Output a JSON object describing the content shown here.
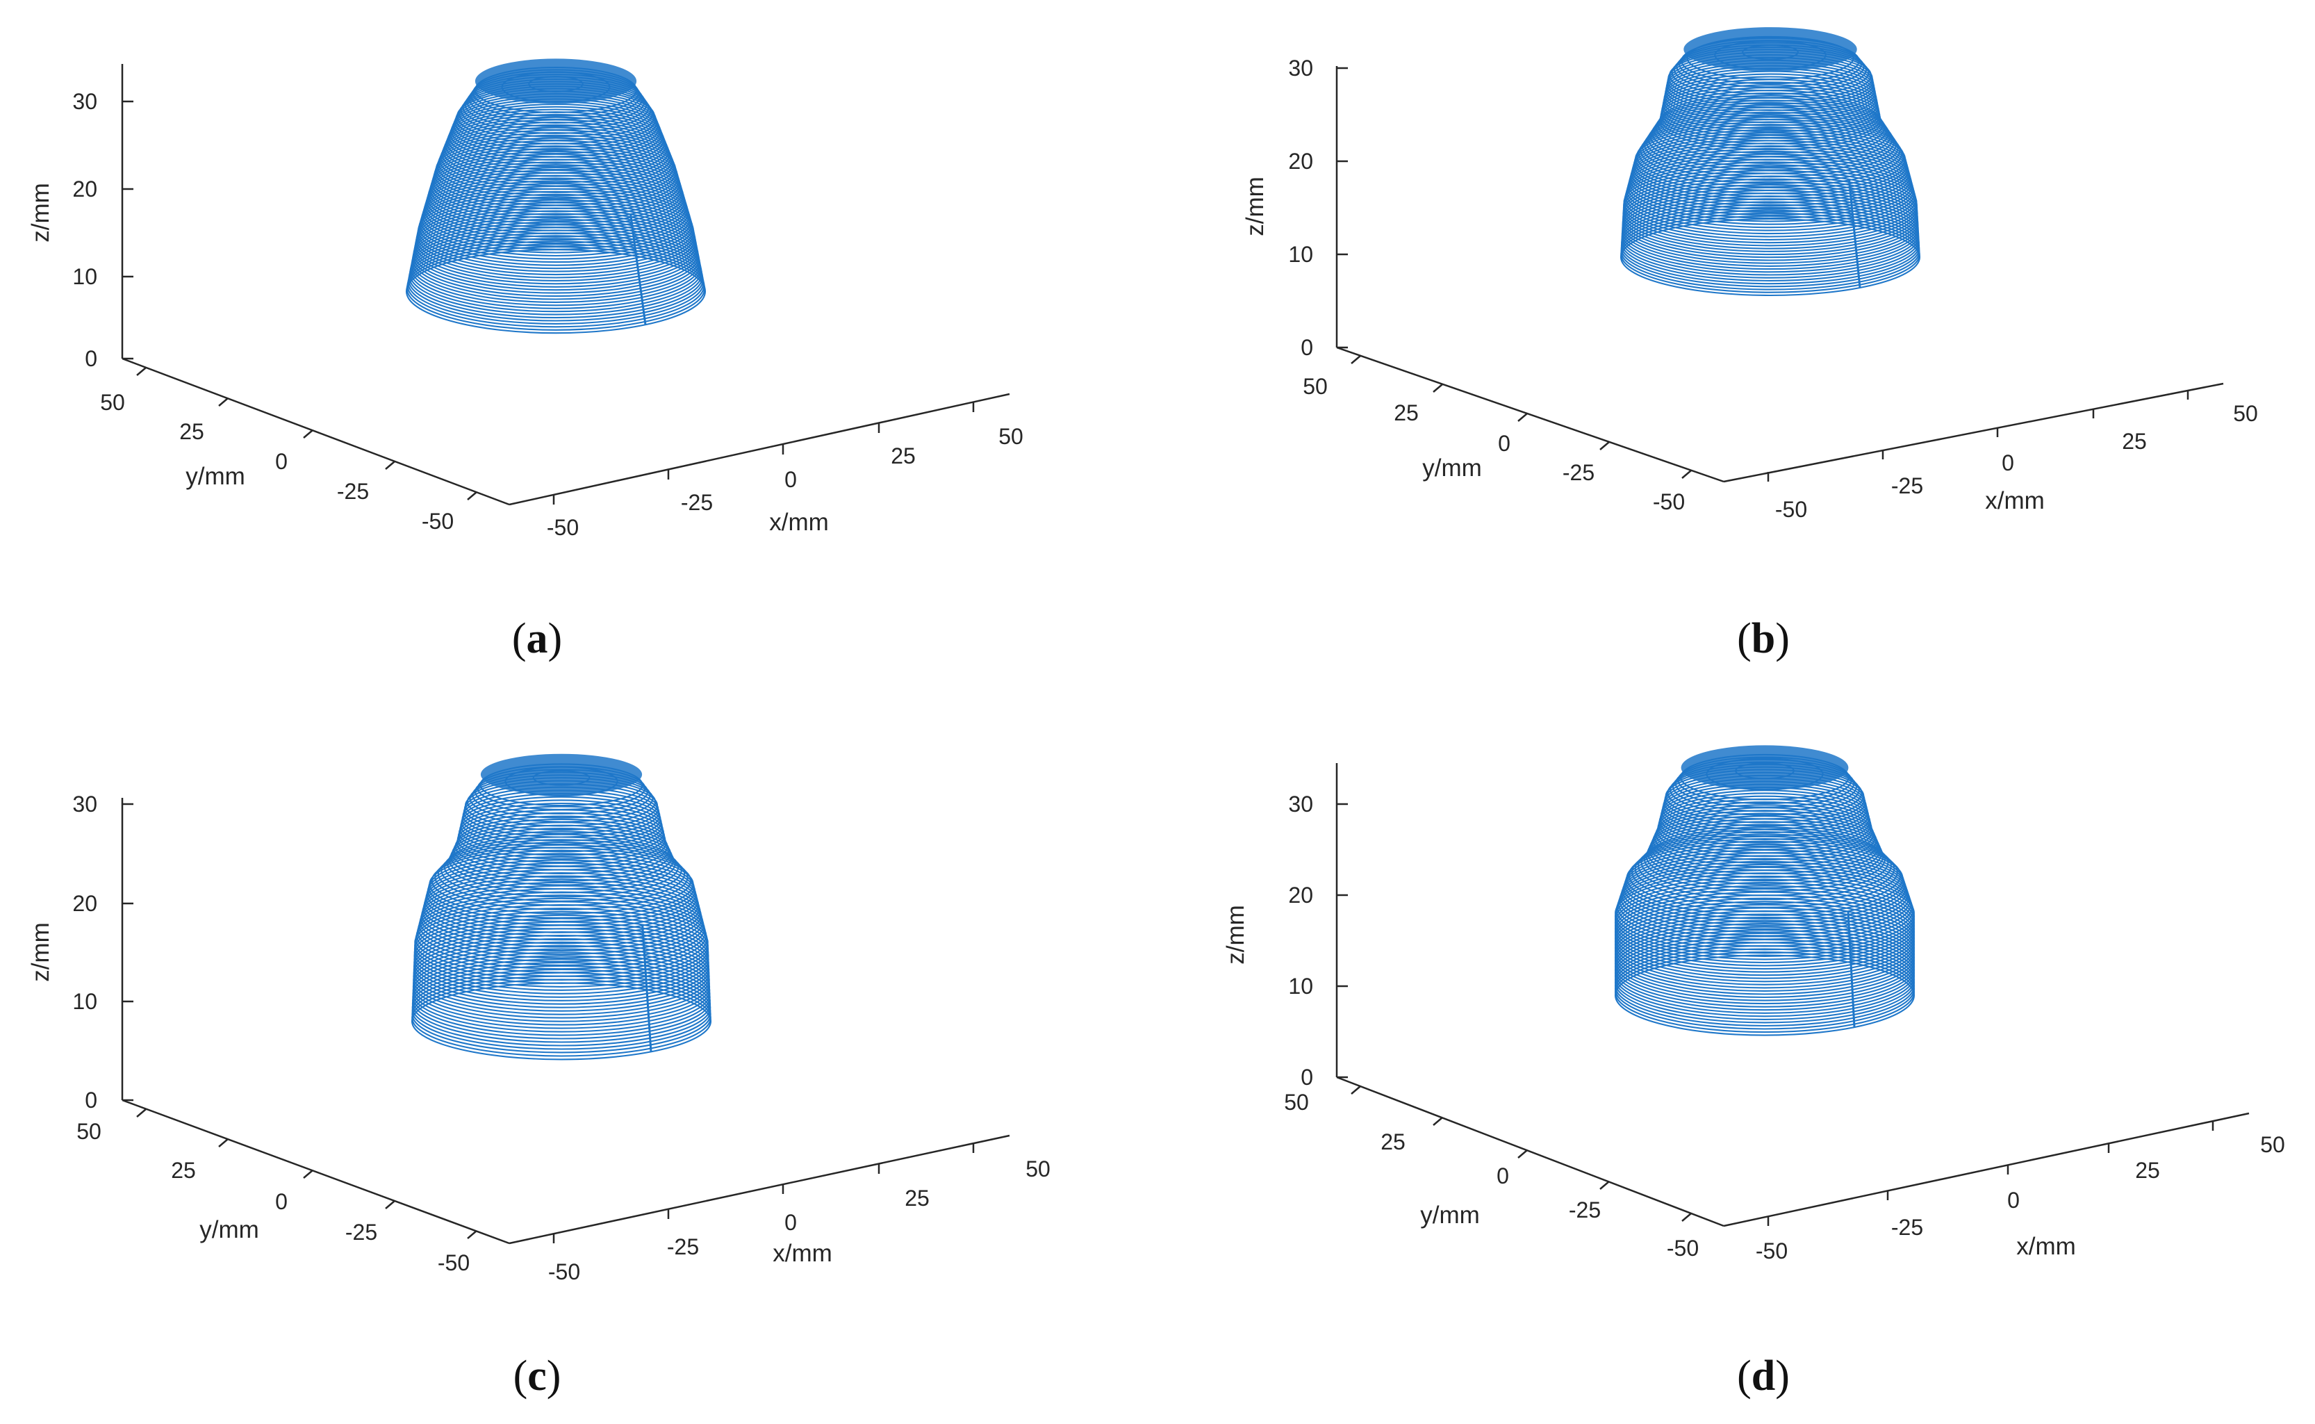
{
  "colors": {
    "surface": "#1f77c9",
    "axis": "#262626",
    "background": "#ffffff"
  },
  "chart_data": [
    {
      "panel": "a",
      "type": "3d-wireframe",
      "caption": {
        "open": "(",
        "letter": "a",
        "close": ")"
      },
      "xlabel": "x/mm",
      "ylabel": "y/mm",
      "zlabel": "z/mm",
      "xticks": [
        "-50",
        "-25",
        "0",
        "25",
        "50"
      ],
      "yticks": [
        "-50",
        "-25",
        "0",
        "25",
        "50"
      ],
      "zticks": [
        "0",
        "10",
        "20",
        "30"
      ],
      "xlim": [
        -50,
        50
      ],
      "ylim": [
        -50,
        50
      ],
      "zlim": [
        0,
        30
      ],
      "profile": [
        {
          "z": 8,
          "r": 50
        },
        {
          "z": 15,
          "r": 46
        },
        {
          "z": 22,
          "r": 40
        },
        {
          "z": 28,
          "r": 33
        },
        {
          "z": 31,
          "r": 27
        },
        {
          "z": 32,
          "r": 0
        }
      ]
    },
    {
      "panel": "b",
      "type": "3d-wireframe",
      "caption": {
        "open": "(",
        "letter": "b",
        "close": ")"
      },
      "xlabel": "x/mm",
      "ylabel": "y/mm",
      "zlabel": "z/mm",
      "xticks": [
        "-50",
        "-25",
        "0",
        "25",
        "50"
      ],
      "yticks": [
        "-50",
        "-25",
        "0",
        "25",
        "50"
      ],
      "zticks": [
        "0",
        "10",
        "20",
        "30"
      ],
      "xlim": [
        -50,
        50
      ],
      "ylim": [
        -50,
        50
      ],
      "zlim": [
        0,
        30
      ],
      "profile": [
        {
          "z": 10,
          "r": 50
        },
        {
          "z": 16,
          "r": 49
        },
        {
          "z": 21,
          "r": 45
        },
        {
          "z": 23,
          "r": 41
        },
        {
          "z": 25,
          "r": 37
        },
        {
          "z": 30,
          "r": 34
        },
        {
          "z": 32,
          "r": 29
        },
        {
          "z": 33,
          "r": 0
        }
      ]
    },
    {
      "panel": "c",
      "type": "3d-wireframe",
      "caption": {
        "open": "(",
        "letter": "c",
        "close": ")"
      },
      "xlabel": "x/mm",
      "ylabel": "y/mm",
      "zlabel": "z/mm",
      "xticks": [
        "-50",
        "-25",
        "0",
        "25",
        "50"
      ],
      "yticks": [
        "-50",
        "-25",
        "0",
        "25",
        "50"
      ],
      "zticks": [
        "0",
        "10",
        "20",
        "30"
      ],
      "xlim": [
        -50,
        50
      ],
      "ylim": [
        -50,
        50
      ],
      "zlim": [
        0,
        30
      ],
      "profile": [
        {
          "z": 8,
          "r": 50
        },
        {
          "z": 16,
          "r": 49
        },
        {
          "z": 22,
          "r": 44
        },
        {
          "z": 24,
          "r": 38
        },
        {
          "z": 26,
          "r": 35
        },
        {
          "z": 30,
          "r": 32
        },
        {
          "z": 32,
          "r": 27
        },
        {
          "z": 33,
          "r": 0
        }
      ]
    },
    {
      "panel": "d",
      "type": "3d-wireframe",
      "caption": {
        "open": "(",
        "letter": "d",
        "close": ")"
      },
      "xlabel": "x/mm",
      "ylabel": "y/mm",
      "zlabel": "z/mm",
      "xticks": [
        "-50",
        "-25",
        "0",
        "25",
        "50"
      ],
      "yticks": [
        "-50",
        "-25",
        "0",
        "25",
        "50"
      ],
      "zticks": [
        "0",
        "10",
        "20",
        "30"
      ],
      "xlim": [
        -50,
        50
      ],
      "ylim": [
        -50,
        50
      ],
      "zlim": [
        0,
        30
      ],
      "profile": [
        {
          "z": 9,
          "r": 50
        },
        {
          "z": 18,
          "r": 50
        },
        {
          "z": 22,
          "r": 46
        },
        {
          "z": 24,
          "r": 40
        },
        {
          "z": 27,
          "r": 36
        },
        {
          "z": 31,
          "r": 33
        },
        {
          "z": 33,
          "r": 28
        },
        {
          "z": 34,
          "r": 0
        }
      ]
    }
  ]
}
